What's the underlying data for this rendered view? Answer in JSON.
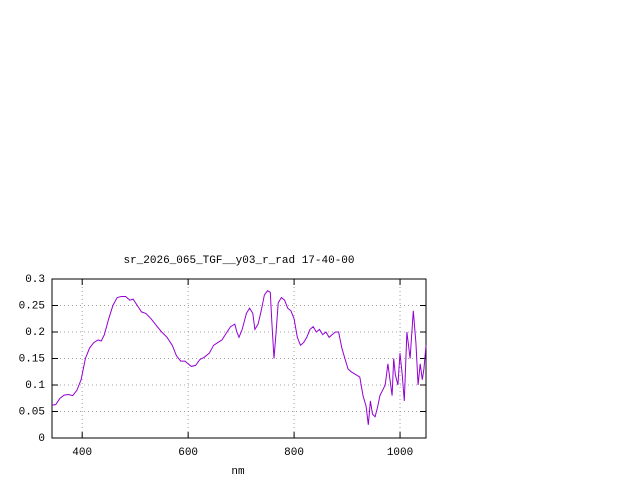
{
  "chart_data": {
    "type": "line",
    "title": "sr_2026_065_TGF__y03_r_rad 17-40-00",
    "x_label": "nm",
    "xlim": [
      343,
      1049
    ],
    "ylim": [
      0,
      0.3
    ],
    "xticks": [
      400,
      600,
      800,
      1000
    ],
    "yticks": [
      0,
      0.05,
      0.1,
      0.15,
      0.2,
      0.25,
      0.3
    ],
    "grid": true,
    "series": [
      {
        "color": "#9400d3",
        "x": [
          343,
          350,
          358,
          366,
          374,
          382,
          390,
          398,
          406,
          414,
          422,
          430,
          436,
          442,
          450,
          458,
          466,
          474,
          482,
          490,
          496,
          504,
          512,
          520,
          530,
          540,
          550,
          560,
          570,
          578,
          586,
          594,
          600,
          606,
          614,
          622,
          630,
          640,
          648,
          656,
          664,
          672,
          680,
          688,
          692,
          696,
          702,
          710,
          716,
          722,
          726,
          732,
          738,
          744,
          750,
          755,
          758,
          762,
          766,
          770,
          776,
          782,
          788,
          794,
          800,
          806,
          812,
          818,
          824,
          830,
          836,
          842,
          848,
          854,
          860,
          866,
          872,
          878,
          884,
          890,
          896,
          902,
          908,
          916,
          924,
          930,
          936,
          940,
          944,
          948,
          953,
          958,
          962,
          967,
          972,
          977,
          981,
          985,
          988,
          991,
          996,
          1000,
          1004,
          1008,
          1013,
          1019,
          1025,
          1030,
          1034,
          1038,
          1042,
          1045,
          1049
        ],
        "values": [
          0.062,
          0.063,
          0.075,
          0.081,
          0.082,
          0.08,
          0.09,
          0.11,
          0.15,
          0.17,
          0.18,
          0.185,
          0.183,
          0.195,
          0.225,
          0.25,
          0.265,
          0.267,
          0.267,
          0.26,
          0.262,
          0.25,
          0.238,
          0.235,
          0.225,
          0.212,
          0.2,
          0.19,
          0.175,
          0.155,
          0.145,
          0.145,
          0.14,
          0.135,
          0.137,
          0.148,
          0.152,
          0.16,
          0.175,
          0.18,
          0.185,
          0.198,
          0.21,
          0.215,
          0.2,
          0.19,
          0.205,
          0.235,
          0.245,
          0.235,
          0.205,
          0.215,
          0.24,
          0.27,
          0.278,
          0.275,
          0.22,
          0.15,
          0.2,
          0.255,
          0.265,
          0.26,
          0.245,
          0.24,
          0.225,
          0.19,
          0.175,
          0.18,
          0.19,
          0.205,
          0.21,
          0.2,
          0.205,
          0.195,
          0.2,
          0.19,
          0.195,
          0.2,
          0.2,
          0.17,
          0.15,
          0.13,
          0.125,
          0.12,
          0.115,
          0.08,
          0.06,
          0.025,
          0.07,
          0.045,
          0.04,
          0.06,
          0.08,
          0.09,
          0.1,
          0.14,
          0.11,
          0.08,
          0.15,
          0.12,
          0.1,
          0.16,
          0.12,
          0.07,
          0.2,
          0.15,
          0.24,
          0.18,
          0.1,
          0.14,
          0.11,
          0.13,
          0.175
        ]
      }
    ]
  }
}
